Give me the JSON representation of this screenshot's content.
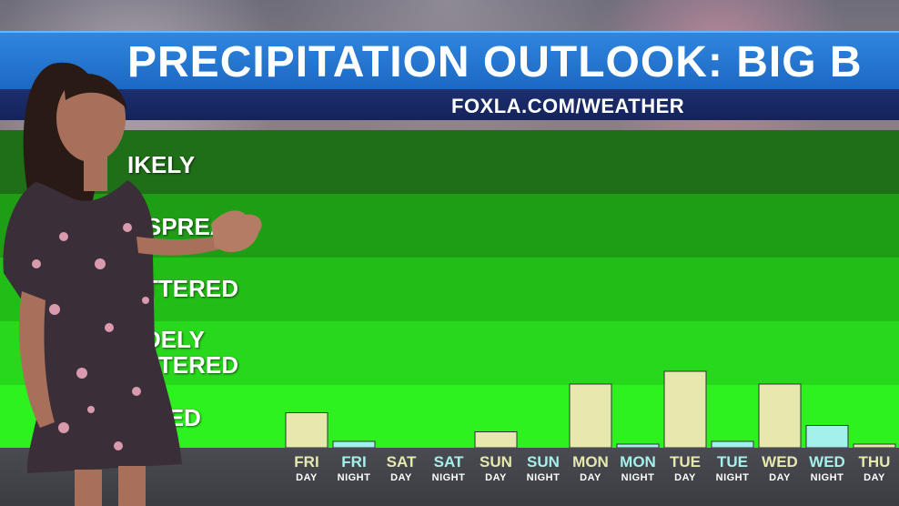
{
  "header": {
    "title": "PRECIPITATION OUTLOOK: BIG B",
    "subtitle": "FOXLA.COM/WEATHER"
  },
  "chart_data": {
    "type": "bar",
    "ylevels": [
      "ISOLATED",
      "WIDELY SCATTERED",
      "SCATTERED",
      "WIDESPREAD",
      "LIKELY"
    ],
    "visible_level_labels": [
      "IKELY",
      "SPREAD",
      "TTERED",
      "DELY\nTTERED",
      "ATED"
    ],
    "level_colors": [
      "#2ef21f",
      "#28d81c",
      "#22be17",
      "#1e9e15",
      "#1f6e18"
    ],
    "ylim": [
      0,
      5
    ],
    "categories": [
      {
        "day": "FRI",
        "part": "DAY"
      },
      {
        "day": "FRI",
        "part": "NIGHT"
      },
      {
        "day": "SAT",
        "part": "DAY"
      },
      {
        "day": "SAT",
        "part": "NIGHT"
      },
      {
        "day": "SUN",
        "part": "DAY"
      },
      {
        "day": "SUN",
        "part": "NIGHT"
      },
      {
        "day": "MON",
        "part": "DAY"
      },
      {
        "day": "MON",
        "part": "NIGHT"
      },
      {
        "day": "TUE",
        "part": "DAY"
      },
      {
        "day": "TUE",
        "part": "NIGHT"
      },
      {
        "day": "WED",
        "part": "DAY"
      },
      {
        "day": "WED",
        "part": "NIGHT"
      },
      {
        "day": "THU",
        "part": "DAY"
      }
    ],
    "values": [
      0.55,
      0.1,
      0,
      0,
      0.25,
      0,
      1.0,
      0.05,
      1.2,
      0.1,
      1.0,
      0.35,
      0.05
    ],
    "day_color": "#e6e8ae",
    "night_color": "#a4f0ea",
    "grid": false,
    "legend": "none"
  },
  "colors": {
    "title_bar": "#2477d1",
    "sub_bar": "#172a62",
    "axis_strip": "#44454b",
    "day_text": "#e6e8ae",
    "night_text": "#a4f0ea"
  }
}
